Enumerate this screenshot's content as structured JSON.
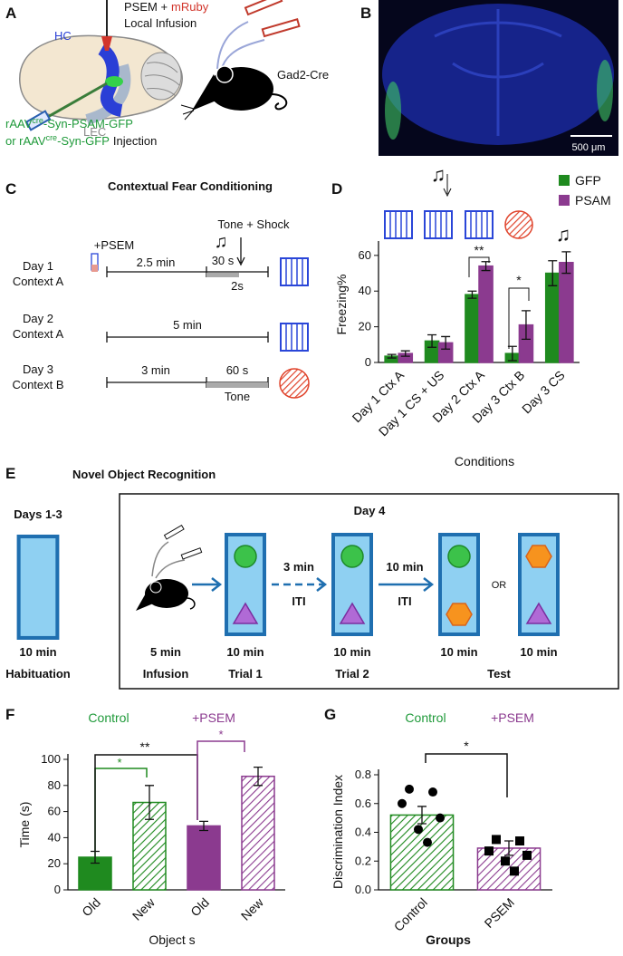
{
  "panels": {
    "a": {
      "letter": "A",
      "drug": "PSEM +",
      "tag": "mRuby",
      "infusion": "Local Infusion",
      "hc": "HC",
      "lec": "LEC",
      "virus1": "rAAV",
      "cre1": "cre",
      "construct1": "-Syn-PSAM-GFP",
      "virus2": "or rAAV",
      "cre2": "cre",
      "construct2": "-Syn-GFP",
      "injection": "Injection",
      "mouse": "Gad2-Cre"
    },
    "b": {
      "letter": "B",
      "scale": "500 μm"
    },
    "c": {
      "letter": "C",
      "title": "Contextual Fear Conditioning",
      "psem": "+PSEM",
      "event": "Tone + Shock",
      "note": "♫",
      "days": [
        {
          "day": "Day 1",
          "context": "Context A"
        },
        {
          "day": "Day 2",
          "context": "Context A"
        },
        {
          "day": "Day 3",
          "context": "Context B"
        }
      ],
      "d1_pre": "2.5 min",
      "d1_tone": "30 s",
      "d1_shock": "2s",
      "d2": "5 min",
      "d3_pre": "3 min",
      "d3_tone": "60 s",
      "d3_tone_label": "Tone"
    },
    "e": {
      "letter": "E",
      "title": "Novel Object Recognition",
      "hab_day": "Days 1-3",
      "hab_time": "10 min",
      "hab_label": "Habituation",
      "day": "Day 4",
      "steps": [
        {
          "time": "5 min",
          "label": "Infusion"
        },
        {
          "time": "10 min",
          "label": "Trial 1"
        },
        {
          "time": "10 min",
          "label": "Trial 2"
        },
        {
          "time": "10 min"
        },
        {
          "time": "10 min"
        }
      ],
      "test": "Test",
      "iti": [
        {
          "time": "3 min",
          "label": "ITI"
        },
        {
          "time": "10 min",
          "label": "ITI"
        }
      ],
      "or": "OR"
    }
  },
  "chart_data": [
    {
      "type": "bar",
      "panel": "D",
      "ylabel": "Freezing%",
      "xlabel": "Conditions",
      "categories": [
        "Day 1 Ctx A",
        "Day 1  CS + US",
        "Day 2 Ctx A",
        "Day 3 Ctx B",
        "Day 3 CS"
      ],
      "series": [
        {
          "name": "GFP",
          "color": "#1f8a1f",
          "values": [
            3.5,
            12,
            38,
            5,
            50
          ],
          "errors": [
            1,
            3.5,
            2,
            4,
            7
          ]
        },
        {
          "name": "PSAM",
          "color": "#8b3a8f",
          "values": [
            5,
            11,
            54,
            21,
            56
          ],
          "errors": [
            1.5,
            3.5,
            2.5,
            8,
            6
          ]
        }
      ],
      "ylim": [
        0,
        65
      ],
      "yticks": [
        0,
        20,
        40,
        60
      ],
      "annotations": [
        "♫",
        "♫",
        "**",
        "*"
      ]
    },
    {
      "type": "bar",
      "panel": "F",
      "ylabel": "Time (s)",
      "xlabel": "Object s",
      "groups": [
        "Control",
        "+PSEM"
      ],
      "categories": [
        "Old",
        "New",
        "Old",
        "New"
      ],
      "values": [
        25,
        67,
        49,
        87
      ],
      "errors": [
        4.5,
        13,
        3.5,
        7
      ],
      "colors": [
        "#1f8a1f",
        "#1f8a1f",
        "#8b3a8f",
        "#8b3a8f"
      ],
      "hatched": [
        false,
        true,
        false,
        true
      ],
      "ylim": [
        0,
        100
      ],
      "yticks": [
        0,
        20,
        40,
        60,
        80,
        100
      ],
      "annotations": [
        "*",
        "**",
        "*"
      ]
    },
    {
      "type": "bar",
      "panel": "G",
      "ylabel": "Discrimination Index",
      "xlabel": "Groups",
      "groups": [
        "Control",
        "+PSEM"
      ],
      "categories": [
        "Control",
        "PSEM"
      ],
      "values": [
        0.52,
        0.29
      ],
      "errors": [
        0.06,
        0.05
      ],
      "colors": [
        "#1f8a1f",
        "#8b3a8f"
      ],
      "hatched": [
        true,
        true
      ],
      "points": [
        [
          0.7,
          0.68,
          0.6,
          0.5,
          0.42,
          0.33
        ],
        [
          0.35,
          0.34,
          0.27,
          0.24,
          0.2,
          0.13
        ]
      ],
      "ylim": [
        0,
        0.8
      ],
      "yticks": [
        {
          "value": 0,
          "label": "0.0"
        },
        0.2,
        0.4,
        0.6,
        0.8
      ],
      "annotations": [
        "*"
      ]
    }
  ]
}
